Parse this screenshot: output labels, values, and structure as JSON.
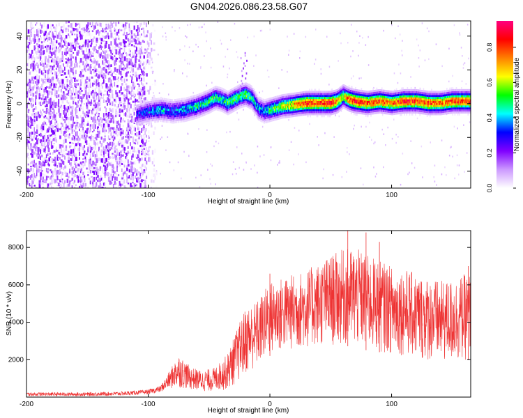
{
  "title": "GN04.2026.086.23.58.G07",
  "chart_data": [
    {
      "type": "heatmap",
      "name": "spectrogram",
      "xlabel": "Height of straight line (km)",
      "ylabel": "Frequency (Hz)",
      "xlim": [
        -200,
        165
      ],
      "ylim": [
        -50,
        49
      ],
      "xticks": [
        -200,
        -100,
        0,
        100
      ],
      "yticks": [
        -40,
        -20,
        0,
        20,
        40
      ],
      "grid": false,
      "colorbar": {
        "label": "Normalized spectral amplitude",
        "range": [
          0,
          0.95
        ],
        "ticks": [
          "0.0",
          "0.2",
          "0.4",
          "0.6",
          "0.8"
        ],
        "tick_values": [
          0.0,
          0.2,
          0.4,
          0.6,
          0.8
        ],
        "colormap": [
          "#ffffff",
          "#cc99ff",
          "#8000ff",
          "#0000ff",
          "#00ffff",
          "#00ff00",
          "#ffff00",
          "#ff8000",
          "#ff0000",
          "#ff0080"
        ]
      },
      "noise_region_x": [
        -200,
        -105
      ],
      "signal_track": {
        "x": [
          -110,
          -100,
          -90,
          -80,
          -70,
          -60,
          -50,
          -45,
          -40,
          -35,
          -30,
          -25,
          -20,
          -15,
          -10,
          -5,
          0,
          10,
          20,
          30,
          40,
          50,
          55,
          60,
          65,
          70,
          80,
          90,
          100,
          110,
          120,
          130,
          140,
          150,
          165
        ],
        "frequency": [
          -6,
          -4,
          -3,
          -4,
          -3,
          -1,
          2,
          4,
          3,
          1,
          3,
          5,
          6,
          4,
          -2,
          -4,
          -3,
          -1,
          0,
          1,
          1,
          1,
          2,
          5,
          3,
          2,
          1,
          2,
          1,
          2,
          2,
          1,
          1,
          2,
          2
        ],
        "amplitude": [
          0.3,
          0.35,
          0.4,
          0.35,
          0.4,
          0.45,
          0.5,
          0.5,
          0.45,
          0.5,
          0.55,
          0.5,
          0.55,
          0.45,
          0.4,
          0.4,
          0.5,
          0.6,
          0.7,
          0.85,
          0.8,
          0.85,
          0.75,
          0.6,
          0.8,
          0.85,
          0.8,
          0.8,
          0.75,
          0.85,
          0.8,
          0.8,
          0.75,
          0.8,
          0.8
        ]
      }
    },
    {
      "type": "line",
      "name": "snr",
      "xlabel": "Height of straight line (km)",
      "ylabel": "SNR (10 * v/v)",
      "xlim": [
        -200,
        165
      ],
      "ylim": [
        0,
        8900
      ],
      "xticks": [
        -200,
        -100,
        0,
        100
      ],
      "yticks": [
        2000,
        4000,
        6000,
        8000
      ],
      "color": "#ee3333",
      "grid": false,
      "envelope": {
        "x": [
          -200,
          -150,
          -120,
          -100,
          -90,
          -85,
          -75,
          -65,
          -55,
          -45,
          -35,
          -28,
          -20,
          -10,
          0,
          10,
          20,
          30,
          40,
          50,
          60,
          70,
          80,
          90,
          100,
          110,
          120,
          130,
          140,
          150,
          165
        ],
        "low": [
          50,
          50,
          80,
          150,
          250,
          400,
          500,
          400,
          300,
          300,
          400,
          700,
          1200,
          1600,
          2200,
          2400,
          2500,
          2600,
          2700,
          2700,
          2800,
          2600,
          2500,
          2400,
          2300,
          2200,
          2000,
          1900,
          1800,
          1800,
          2000
        ],
        "high": [
          250,
          250,
          300,
          400,
          600,
          1100,
          2300,
          1600,
          1400,
          1600,
          2300,
          3500,
          4800,
          5200,
          6200,
          6400,
          6600,
          6800,
          7200,
          7600,
          7900,
          8000,
          7600,
          7300,
          7000,
          6900,
          6600,
          6400,
          6200,
          6300,
          6700
        ]
      },
      "peaks": [
        {
          "x": 64,
          "y": 8900
        },
        {
          "x": 79,
          "y": 8800
        },
        {
          "x": 90,
          "y": 8300
        },
        {
          "x": 0,
          "y": 6600
        },
        {
          "x": 163,
          "y": 7000
        }
      ]
    }
  ]
}
